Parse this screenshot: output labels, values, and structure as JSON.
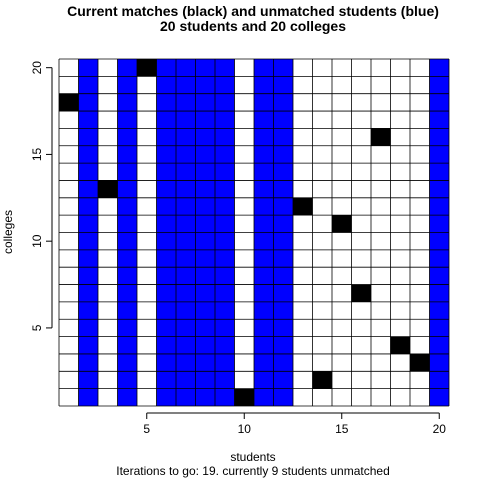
{
  "chart_data": {
    "type": "heatmap",
    "title": "Current matches (black) and unmatched students (blue)",
    "subtitle": "20 students and 20 colleges",
    "xlabel": "students",
    "ylabel": "colleges",
    "caption": "Iterations to go: 19. currently 9 students unmatched",
    "xlim": [
      0.5,
      20.5
    ],
    "ylim": [
      0.5,
      20.5
    ],
    "x_ticks": [
      5,
      10,
      15,
      20
    ],
    "y_ticks": [
      5,
      10,
      15,
      20
    ],
    "colors": {
      "matched": "#000000",
      "unmatched": "#0000ff",
      "empty": "#ffffff",
      "grid": "#000000"
    },
    "unmatched_students": [
      2,
      4,
      6,
      7,
      8,
      9,
      11,
      12,
      20
    ],
    "matches": [
      {
        "student": 1,
        "college": 18
      },
      {
        "student": 3,
        "college": 13
      },
      {
        "student": 5,
        "college": 20
      },
      {
        "student": 10,
        "college": 1
      },
      {
        "student": 13,
        "college": 12
      },
      {
        "student": 14,
        "college": 2
      },
      {
        "student": 15,
        "college": 11
      },
      {
        "student": 16,
        "college": 7
      },
      {
        "student": 17,
        "college": 16
      },
      {
        "student": 18,
        "college": 4
      },
      {
        "student": 19,
        "college": 3
      }
    ]
  }
}
